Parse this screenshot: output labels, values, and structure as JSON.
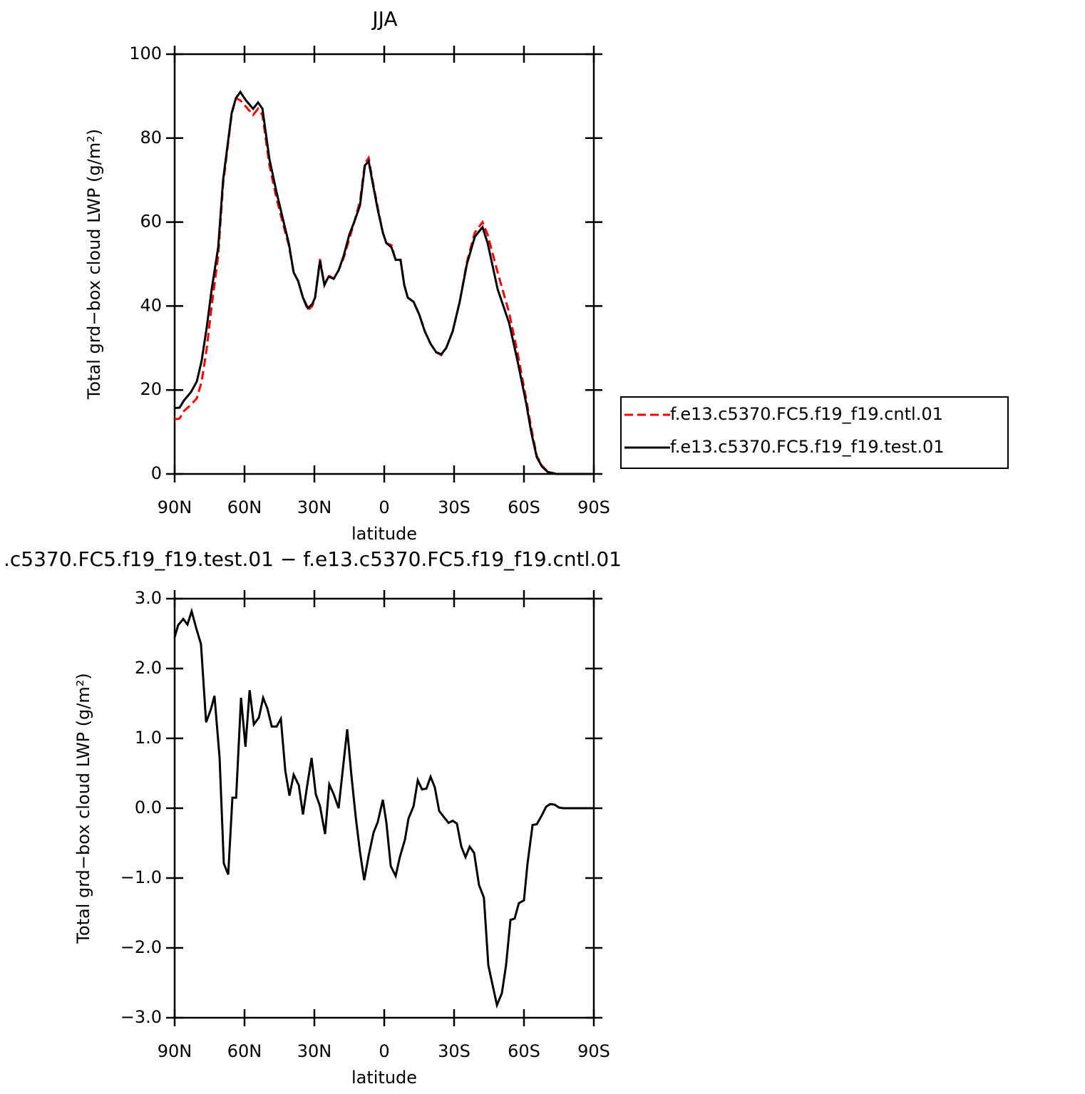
{
  "chart_data": [
    {
      "type": "line",
      "title": "JJA",
      "xlabel": "latitude",
      "ylabel": "Total grd−box cloud LWP (g/m²)",
      "x": [
        90,
        87.9,
        86,
        83,
        80.5,
        78.4,
        76.2,
        74.1,
        71.3,
        69.2,
        65.5,
        63.7,
        61.8,
        59.4,
        56.3,
        54.2,
        52.3,
        49.3,
        46.2,
        43.2,
        41,
        38.9,
        37,
        34.9,
        32.8,
        30.9,
        29.7,
        27.6,
        25.7,
        23.9,
        21.7,
        19.6,
        17.4,
        15,
        12.9,
        10.4,
        8.3,
        6.7,
        5.2,
        2.8,
        0.6,
        -0.9,
        -3.1,
        -4.9,
        -7,
        -8.6,
        -10.1,
        -12.6,
        -15,
        -17.4,
        -19.9,
        -22.3,
        -24.5,
        -26.6,
        -29.4,
        -32.4,
        -35.5,
        -38.9,
        -42.2,
        -44.4,
        -48.7,
        -53.6,
        -57.2,
        -60.9,
        -63.1,
        -65.5,
        -67.7,
        -70.1,
        -73.8,
        -90
      ],
      "series": [
        {
          "name": "f.e13.c5370.FC5.f19_f19.cntl.01",
          "color": "#ff0000",
          "dash": "dashed",
          "values": [
            13,
            13.2,
            15,
            16.5,
            18,
            22,
            30,
            40,
            52,
            69,
            85.8,
            89.5,
            89,
            87.5,
            85.5,
            87,
            85.5,
            73.5,
            65.5,
            59,
            54.5,
            48,
            46,
            42,
            39,
            40,
            42,
            51.2,
            45,
            47.3,
            46.5,
            48.5,
            51.5,
            56,
            60,
            65,
            74,
            75.3,
            70.5,
            63.5,
            57.5,
            55,
            54.5,
            51,
            51,
            45,
            42,
            41,
            38,
            34,
            31,
            29,
            28.3,
            30,
            34,
            41,
            50.5,
            57.5,
            60,
            57,
            48,
            38.5,
            29,
            18,
            11,
            4.3,
            2,
            0.6,
            0,
            0
          ]
        },
        {
          "name": "f.e13.c5370.FC5.f19_f19.test.01",
          "color": "#000000",
          "dash": "solid",
          "values": [
            15.7,
            15.8,
            17.5,
            19.5,
            22,
            27,
            35,
            44,
            54,
            70,
            86,
            89.5,
            91,
            89,
            87,
            88.5,
            87,
            75,
            67,
            60,
            55,
            48,
            46,
            42,
            39.5,
            40.5,
            42,
            50.8,
            45,
            47,
            46.5,
            48.5,
            52,
            57,
            60,
            64,
            73.5,
            74.5,
            70,
            63,
            57.5,
            55,
            54,
            51,
            51,
            45,
            42,
            41,
            38,
            34,
            31,
            29,
            28.5,
            30,
            34,
            41,
            50,
            56.5,
            58.8,
            55,
            44,
            36,
            27,
            17,
            10,
            4,
            1.8,
            0.5,
            0,
            0
          ]
        }
      ],
      "xlim": [
        90,
        -90
      ],
      "xticks": [
        {
          "value": 90,
          "label": "90N"
        },
        {
          "value": 60,
          "label": "60N"
        },
        {
          "value": 30,
          "label": "30N"
        },
        0,
        {
          "value": -30,
          "label": "30S"
        },
        {
          "value": -60,
          "label": "60S"
        },
        {
          "value": -90,
          "label": "90S"
        }
      ],
      "ylim": [
        0,
        100
      ],
      "yticks": [
        0,
        20,
        40,
        60,
        80,
        100
      ],
      "legend": "right"
    },
    {
      "type": "line",
      "title": ".c5370.FC5.f19_f19.test.01 − f.e13.c5370.FC5.f19_f19.cntl.01",
      "xlabel": "latitude",
      "ylabel": "Total grd−box cloud LWP (g/m²)",
      "x": [
        90,
        88.5,
        86.3,
        84.5,
        82.7,
        80.5,
        78.7,
        76.5,
        74.4,
        72.9,
        70.7,
        68.9,
        67,
        65.2,
        63.6,
        61.5,
        59.6,
        57.8,
        56,
        53.8,
        52,
        50.2,
        48.3,
        46.2,
        44.4,
        42.5,
        40.7,
        38.9,
        36.7,
        34.9,
        33.1,
        31.2,
        29.4,
        27.6,
        25.4,
        23.6,
        21.7,
        19.6,
        17.8,
        15.9,
        14.1,
        12.2,
        10.4,
        8.6,
        6.7,
        4.6,
        2.8,
        0.6,
        -0.9,
        -2.8,
        -4.9,
        -6.7,
        -8.9,
        -10.4,
        -12.6,
        -14.4,
        -16.2,
        -18.1,
        -19.9,
        -21.7,
        -23.6,
        -25.7,
        -27.6,
        -29.4,
        -31.2,
        -33.1,
        -34.9,
        -36.7,
        -38.6,
        -40.7,
        -42.8,
        -44.7,
        -48.4,
        -50.5,
        -52.3,
        -54.2,
        -56,
        -57.8,
        -60,
        -61.5,
        -63.7,
        -65.5,
        -67.7,
        -69.5,
        -71.3,
        -73.2,
        -75,
        -76.8,
        -90
      ],
      "series": [
        {
          "color": "#000000",
          "dash": "solid",
          "values": [
            2.45,
            2.62,
            2.71,
            2.63,
            2.82,
            2.55,
            2.35,
            1.23,
            1.42,
            1.61,
            0.72,
            -0.79,
            -0.95,
            0.15,
            0.15,
            1.58,
            0.88,
            1.69,
            1.2,
            1.3,
            1.58,
            1.43,
            1.17,
            1.17,
            1.28,
            0.54,
            0.18,
            0.48,
            0.33,
            -0.09,
            0.32,
            0.72,
            0.2,
            0.03,
            -0.37,
            0.34,
            0.2,
            0,
            0.55,
            1.13,
            0.47,
            -0.14,
            -0.63,
            -1.03,
            -0.68,
            -0.35,
            -0.2,
            0.12,
            -0.2,
            -0.83,
            -0.97,
            -0.7,
            -0.45,
            -0.15,
            0.03,
            0.4,
            0.27,
            0.28,
            0.45,
            0.3,
            -0.04,
            -0.13,
            -0.21,
            -0.18,
            -0.22,
            -0.55,
            -0.7,
            -0.55,
            -0.64,
            -1.1,
            -1.28,
            -2.25,
            -2.82,
            -2.65,
            -2.25,
            -1.6,
            -1.58,
            -1.36,
            -1.32,
            -0.8,
            -0.24,
            -0.23,
            -0.1,
            0.02,
            0.06,
            0.05,
            0.01,
            0,
            0
          ]
        }
      ],
      "xlim": [
        90,
        -90
      ],
      "xticks": [
        {
          "value": 90,
          "label": "90N"
        },
        {
          "value": 60,
          "label": "60N"
        },
        {
          "value": 30,
          "label": "30N"
        },
        0,
        {
          "value": -30,
          "label": "30S"
        },
        {
          "value": -60,
          "label": "60S"
        },
        {
          "value": -90,
          "label": "90S"
        }
      ],
      "ylim": [
        -3,
        3
      ],
      "yticks": [
        {
          "value": -3,
          "label": "−3.0"
        },
        {
          "value": -2,
          "label": "−2.0"
        },
        {
          "value": -1,
          "label": "−1.0"
        },
        {
          "value": 0,
          "label": "0.0"
        },
        {
          "value": 1,
          "label": "1.0"
        },
        {
          "value": 2,
          "label": "2.0"
        },
        {
          "value": 3,
          "label": "3.0"
        }
      ]
    }
  ]
}
